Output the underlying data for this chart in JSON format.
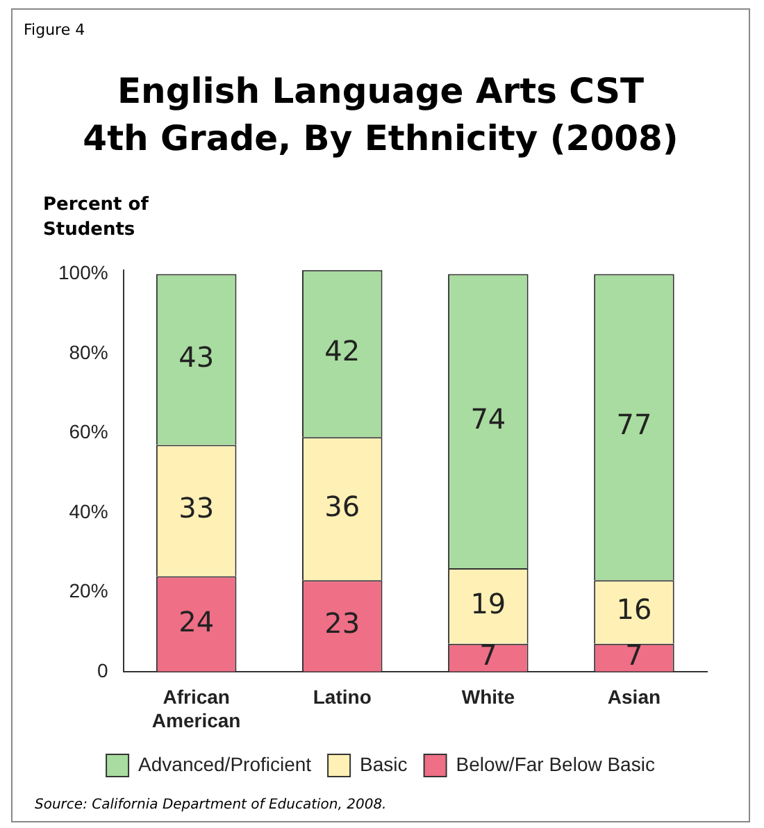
{
  "chart_data": {
    "type": "bar",
    "title": "English Language Arts CST\n4th Grade, By Ethnicity (2008)",
    "ylabel": "Percent of\nStudents",
    "categories": [
      "African American",
      "Latino",
      "White",
      "Asian"
    ],
    "stacked": true,
    "ylim": [
      0,
      101
    ],
    "yticks": [
      {
        "value": 0,
        "label": "0"
      },
      {
        "value": 20,
        "label": "20%"
      },
      {
        "value": 40,
        "label": "40%"
      },
      {
        "value": 60,
        "label": "60%"
      },
      {
        "value": 80,
        "label": "80%"
      },
      {
        "value": 100,
        "label": "100%"
      }
    ],
    "series": [
      {
        "name": "Below/Far Below Basic",
        "color": "#ee6f86",
        "values": [
          24,
          23,
          7,
          7
        ]
      },
      {
        "name": "Basic",
        "color": "#fff1b5",
        "values": [
          33,
          36,
          19,
          16
        ]
      },
      {
        "name": "Advanced/Proficient",
        "color": "#a9dca0",
        "values": [
          43,
          42,
          74,
          77
        ]
      }
    ],
    "data_labels": true,
    "legend": "bottom",
    "annotations": [
      "Figure 4",
      "Source: California Department of Education, 2008."
    ]
  }
}
